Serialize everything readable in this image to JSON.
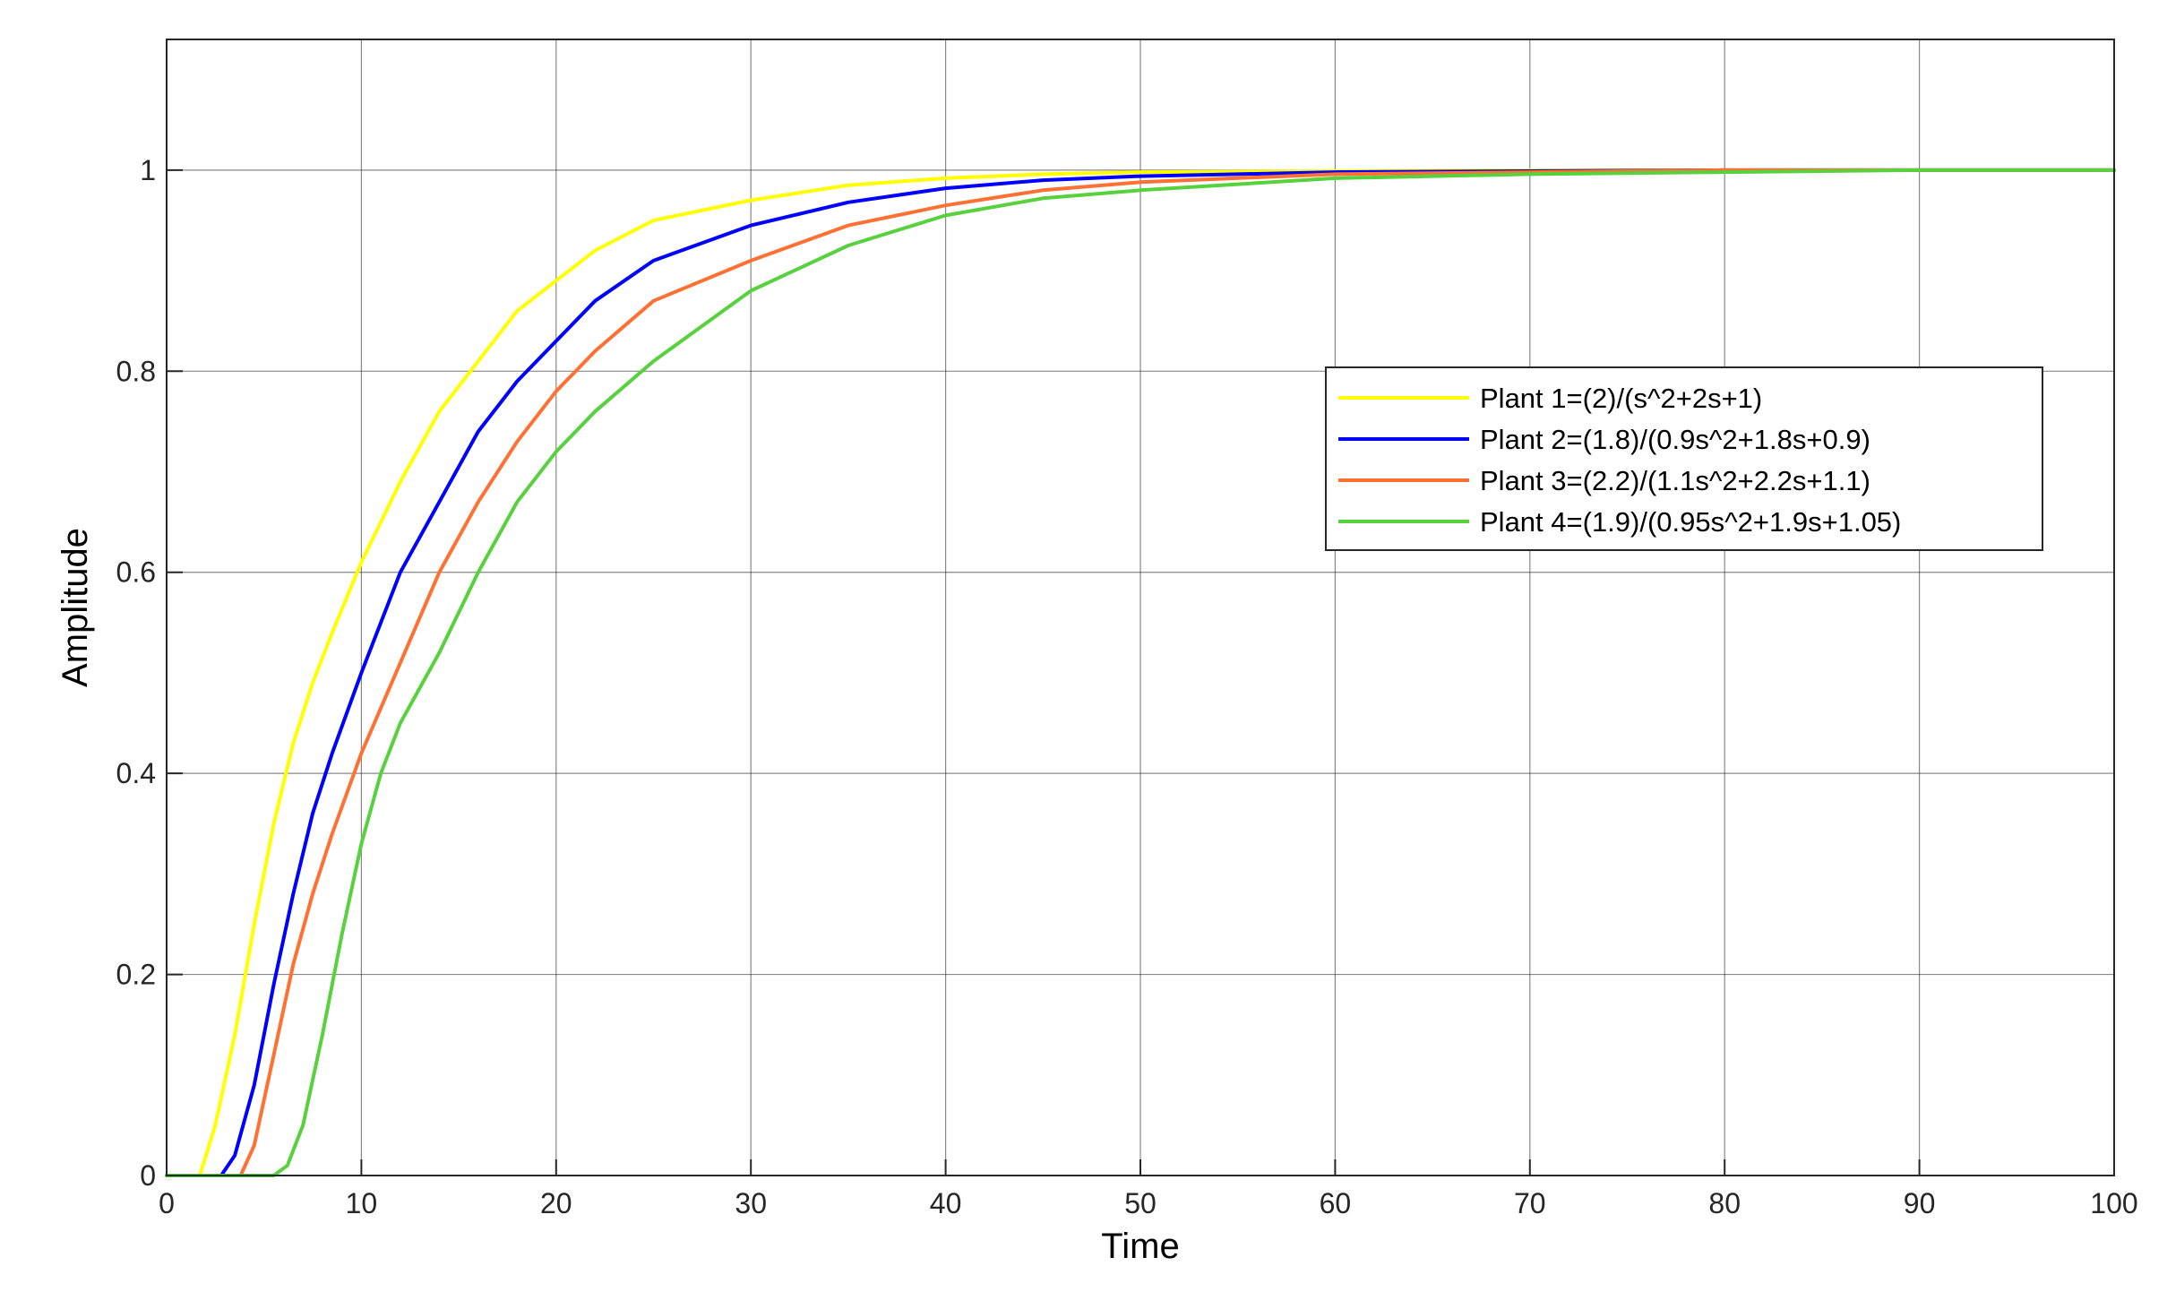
{
  "chart_data": {
    "type": "line",
    "title": "",
    "xlabel": "Time",
    "ylabel": "Amplitude",
    "xlim": [
      0,
      100
    ],
    "ylim": [
      0,
      1.13
    ],
    "xticks": [
      0,
      10,
      20,
      30,
      40,
      50,
      60,
      70,
      80,
      90,
      100
    ],
    "yticks": [
      0,
      0.2,
      0.4,
      0.6,
      0.8,
      1
    ],
    "xtick_labels": [
      "0",
      "10",
      "20",
      "30",
      "40",
      "50",
      "60",
      "70",
      "80",
      "90",
      "100"
    ],
    "ytick_labels": [
      "0",
      "0.2",
      "0.4",
      "0.6",
      "0.8",
      "1"
    ],
    "grid": true,
    "legend_position": "right-middle",
    "series": [
      {
        "name": "Plant 1=(2)/(s^2+2s+1)",
        "color": "#ffff00",
        "x": [
          0,
          1.7,
          2.5,
          3.5,
          4.5,
          5.5,
          6.5,
          7.5,
          8.5,
          10,
          12,
          14,
          16,
          18,
          20,
          22,
          25,
          30,
          35,
          40,
          45,
          50,
          60,
          70,
          80,
          90,
          100
        ],
        "y": [
          0,
          0,
          0.05,
          0.14,
          0.25,
          0.35,
          0.43,
          0.49,
          0.54,
          0.61,
          0.69,
          0.76,
          0.81,
          0.86,
          0.89,
          0.92,
          0.95,
          0.97,
          0.985,
          0.992,
          0.996,
          0.998,
          0.999,
          1,
          1,
          1,
          1
        ]
      },
      {
        "name": "Plant 2=(1.8)/(0.9s^2+1.8s+0.9)",
        "color": "#0000ff",
        "x": [
          0,
          2.8,
          3.5,
          4.5,
          5.5,
          6.5,
          7.5,
          8.5,
          10,
          12,
          14,
          16,
          18,
          20,
          22,
          25,
          30,
          35,
          40,
          45,
          50,
          55,
          60,
          70,
          80,
          90,
          100
        ],
        "y": [
          0,
          0,
          0.02,
          0.09,
          0.19,
          0.28,
          0.36,
          0.42,
          0.5,
          0.6,
          0.67,
          0.74,
          0.79,
          0.83,
          0.87,
          0.91,
          0.945,
          0.968,
          0.982,
          0.99,
          0.994,
          0.996,
          0.998,
          0.999,
          1,
          1,
          1
        ]
      },
      {
        "name": "Plant 3=(2.2)/(1.1s^2+2.2s+1.1)",
        "color": "#ff7033",
        "x": [
          0,
          3.8,
          4.5,
          5.5,
          6.5,
          7.5,
          8.5,
          10,
          12,
          14,
          16,
          18,
          20,
          22,
          25,
          30,
          35,
          40,
          45,
          50,
          60,
          70,
          80,
          90,
          100
        ],
        "y": [
          0,
          0,
          0.03,
          0.12,
          0.21,
          0.28,
          0.34,
          0.42,
          0.51,
          0.6,
          0.67,
          0.73,
          0.78,
          0.82,
          0.87,
          0.91,
          0.945,
          0.965,
          0.98,
          0.988,
          0.996,
          0.998,
          1,
          1,
          1
        ]
      },
      {
        "name": "Plant 4=(1.9)/(0.95s^2+1.9s+1.05)",
        "color": "#57d13d",
        "x": [
          0,
          5.5,
          6.2,
          7,
          8,
          9,
          10,
          11,
          12,
          14,
          16,
          18,
          20,
          22,
          25,
          30,
          35,
          40,
          45,
          50,
          60,
          70,
          80,
          90,
          100
        ],
        "y": [
          0,
          0,
          0.01,
          0.05,
          0.14,
          0.24,
          0.33,
          0.4,
          0.45,
          0.52,
          0.6,
          0.67,
          0.72,
          0.76,
          0.81,
          0.88,
          0.925,
          0.955,
          0.972,
          0.98,
          0.992,
          0.996,
          0.998,
          1,
          1
        ]
      }
    ]
  }
}
